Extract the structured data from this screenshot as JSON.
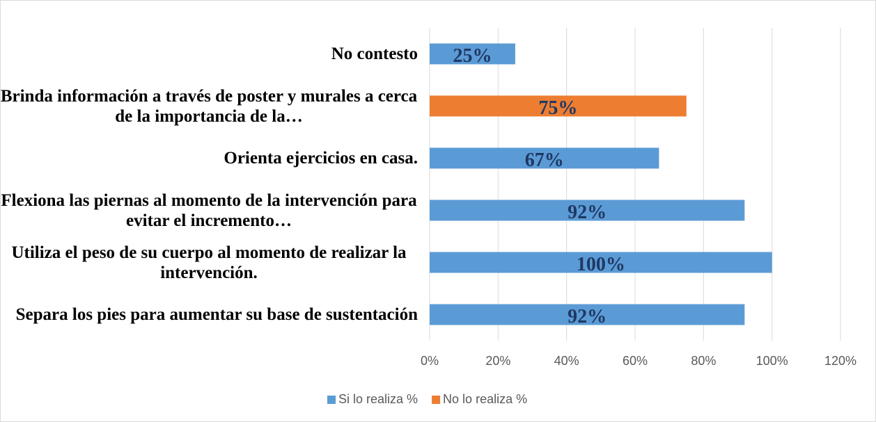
{
  "chart_data": {
    "type": "hbar",
    "categories": [
      "No contesto",
      "Brinda información a través de poster y murales a cerca de la importancia de la…",
      "Orienta ejercicios  en casa.",
      "Flexiona las piernas al momento de la intervención para evitar el incremento…",
      "Utiliza el peso de su cuerpo al momento de realizar la intervención.",
      "Separa los pies para aumentar su base de sustentación"
    ],
    "series": [
      {
        "name": "Si lo realiza %",
        "color": "#5b9bd5",
        "values": [
          25,
          null,
          67,
          92,
          100,
          92
        ],
        "value_labels": [
          "25%",
          null,
          "67%",
          "92%",
          "100%",
          "92%"
        ]
      },
      {
        "name": "No lo realiza %",
        "color": "#ed7d31",
        "values": [
          null,
          75,
          null,
          null,
          null,
          null
        ],
        "value_labels": [
          null,
          "75%",
          null,
          null,
          null,
          null
        ]
      }
    ],
    "xlim": [
      0,
      120
    ],
    "xticks": [
      {
        "value": 0,
        "label": "0%"
      },
      {
        "value": 20,
        "label": "20%"
      },
      {
        "value": 40,
        "label": "40%"
      },
      {
        "value": 60,
        "label": "60%"
      },
      {
        "value": 80,
        "label": "80%"
      },
      {
        "value": 100,
        "label": "100%"
      },
      {
        "value": 120,
        "label": "120%"
      }
    ],
    "grid": true,
    "legend": "bottom"
  }
}
